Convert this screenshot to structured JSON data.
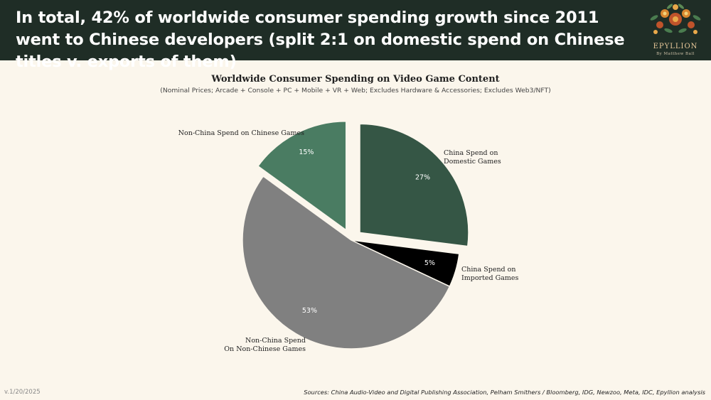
{
  "headline": "In total, 42% of worldwide consumer spending growth since 2011 went to Chinese developers (split 2:1 on domestic spend on Chinese titles v. exports of them)",
  "logo": {
    "name": "EPYLLION",
    "byline": "By Matthew Ball",
    "icon": "floral-wreath-icon"
  },
  "chart_data": {
    "type": "pie",
    "title": "Worldwide Consumer Spending on Video Game Content",
    "subtitle": "(Nominal Prices; Arcade + Console + PC + Mobile + VR + Web; Excludes Hardware & Accessories; Excludes Web3/NFT)",
    "start_angle_deg": 0,
    "direction": "clockwise",
    "exploded": true,
    "slices": [
      {
        "label": "China Spend on Domestic Games",
        "label_lines": [
          "China Spend on",
          "Domestic Games"
        ],
        "value": 27,
        "value_label": "27%",
        "color": "#355645"
      },
      {
        "label": "China Spend on Imported Games",
        "label_lines": [
          "China Spend on",
          "Imported Games"
        ],
        "value": 5,
        "value_label": "5%",
        "color": "#000000"
      },
      {
        "label": "Non-China Spend On Non-Chinese Games",
        "label_lines": [
          "Non-China Spend",
          "On Non-Chinese Games"
        ],
        "value": 53,
        "value_label": "53%",
        "color": "#808080"
      },
      {
        "label": "Non-China Spend on Chinese Games",
        "label_lines": [
          "Non-China Spend on Chinese Games"
        ],
        "value": 15,
        "value_label": "15%",
        "color": "#4a7c62"
      }
    ]
  },
  "footer": {
    "version": "v.1/20/2025",
    "sources": "Sources: China Audio-Video and Digital Publishing Association, Pelham Smithers / Bloomberg, IDG, Newzoo, Meta, IDC, Epyllion analysis"
  }
}
